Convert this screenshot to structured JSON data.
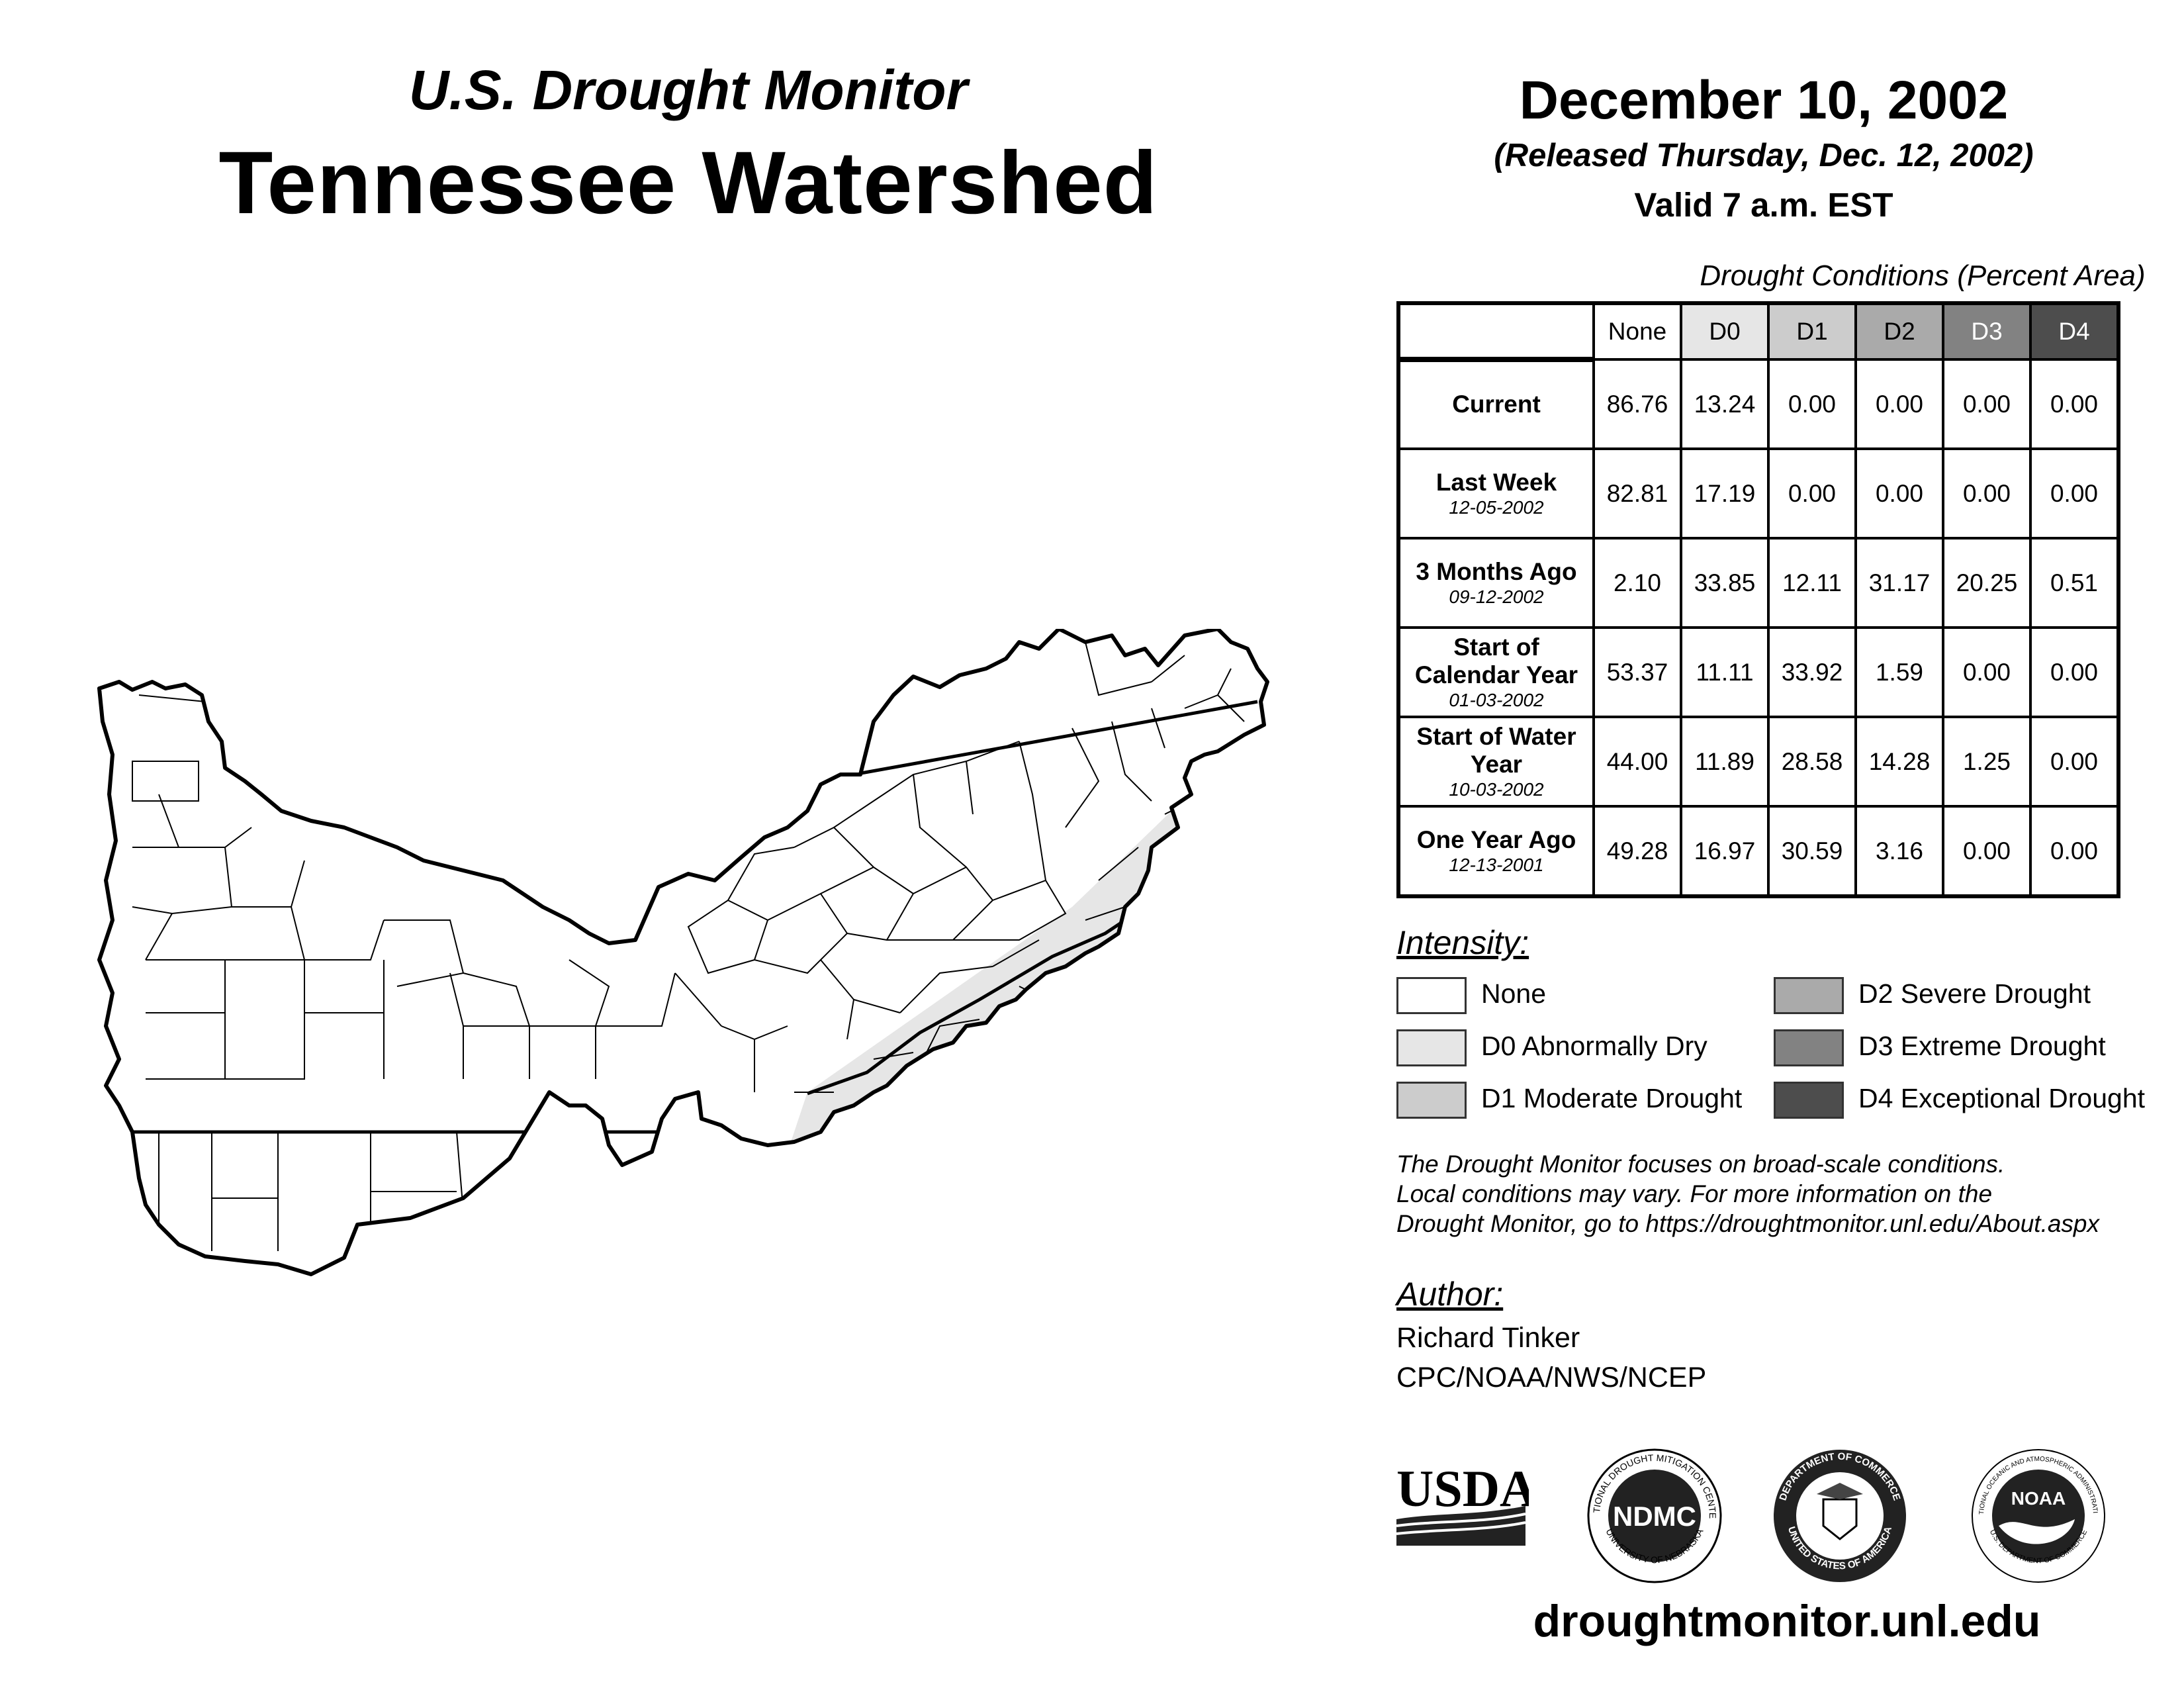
{
  "header": {
    "supertitle": "U.S. Drought Monitor",
    "title": "Tennessee Watershed",
    "date": "December 10, 2002",
    "released": "(Released Thursday, Dec. 12, 2002)",
    "valid": "Valid 7 a.m. EST"
  },
  "table": {
    "caption": "Drought Conditions (Percent Area)",
    "columns": [
      "None",
      "D0",
      "D1",
      "D2",
      "D3",
      "D4"
    ],
    "column_colors": [
      "#ffffff",
      "#e6e6e6",
      "#cccccc",
      "#aaaaaa",
      "#828282",
      "#4d4d4d"
    ],
    "column_text_colors": [
      "#000000",
      "#000000",
      "#000000",
      "#000000",
      "#ffffff",
      "#ffffff"
    ],
    "rows": [
      {
        "label": "Current",
        "date": "",
        "values": [
          "86.76",
          "13.24",
          "0.00",
          "0.00",
          "0.00",
          "0.00"
        ]
      },
      {
        "label": "Last Week",
        "date": "12-05-2002",
        "values": [
          "82.81",
          "17.19",
          "0.00",
          "0.00",
          "0.00",
          "0.00"
        ]
      },
      {
        "label": "3 Months Ago",
        "date": "09-12-2002",
        "values": [
          "2.10",
          "33.85",
          "12.11",
          "31.17",
          "20.25",
          "0.51"
        ]
      },
      {
        "label": "Start of Calendar Year",
        "date": "01-03-2002",
        "values": [
          "53.37",
          "11.11",
          "33.92",
          "1.59",
          "0.00",
          "0.00"
        ]
      },
      {
        "label": "Start of Water Year",
        "date": "10-03-2002",
        "values": [
          "44.00",
          "11.89",
          "28.58",
          "14.28",
          "1.25",
          "0.00"
        ]
      },
      {
        "label": "One Year Ago",
        "date": "12-13-2001",
        "values": [
          "49.28",
          "16.97",
          "30.59",
          "3.16",
          "0.00",
          "0.00"
        ]
      }
    ]
  },
  "legend": {
    "title": "Intensity:",
    "items": [
      {
        "label": "None",
        "color": "#ffffff"
      },
      {
        "label": "D0 Abnormally Dry",
        "color": "#e6e6e6"
      },
      {
        "label": "D1 Moderate Drought",
        "color": "#cccccc"
      },
      {
        "label": "D2 Severe Drought",
        "color": "#aaaaaa"
      },
      {
        "label": "D3 Extreme Drought",
        "color": "#828282"
      },
      {
        "label": "D4 Exceptional Drought",
        "color": "#4d4d4d"
      }
    ]
  },
  "note": {
    "lines": [
      "The Drought Monitor focuses on broad-scale conditions.",
      "Local conditions may vary. For more information on the",
      "Drought Monitor, go to https://droughtmonitor.unl.edu/About.aspx"
    ]
  },
  "author": {
    "title": "Author:",
    "name": "Richard Tinker",
    "org": "CPC/NOAA/NWS/NCEP"
  },
  "logos": {
    "usda": "USDA",
    "ndmc": "NDMC",
    "ndmc_ring_top": "NATIONAL DROUGHT MITIGATION CENTER",
    "ndmc_ring_bottom": "UNIVERSITY OF NEBRASKA",
    "commerce_ring_top": "DEPARTMENT OF COMMERCE",
    "commerce_ring_bottom": "UNITED STATES OF AMERICA",
    "noaa": "NOAA",
    "noaa_ring_top": "NATIONAL OCEANIC AND ATMOSPHERIC ADMINISTRATION",
    "noaa_ring_bottom": "U.S. DEPARTMENT OF COMMERCE"
  },
  "footer": {
    "url": "droughtmonitor.unl.edu"
  },
  "map": {
    "region": "Tennessee Watershed",
    "d0_color": "#e6e6e6",
    "none_color": "#ffffff"
  }
}
